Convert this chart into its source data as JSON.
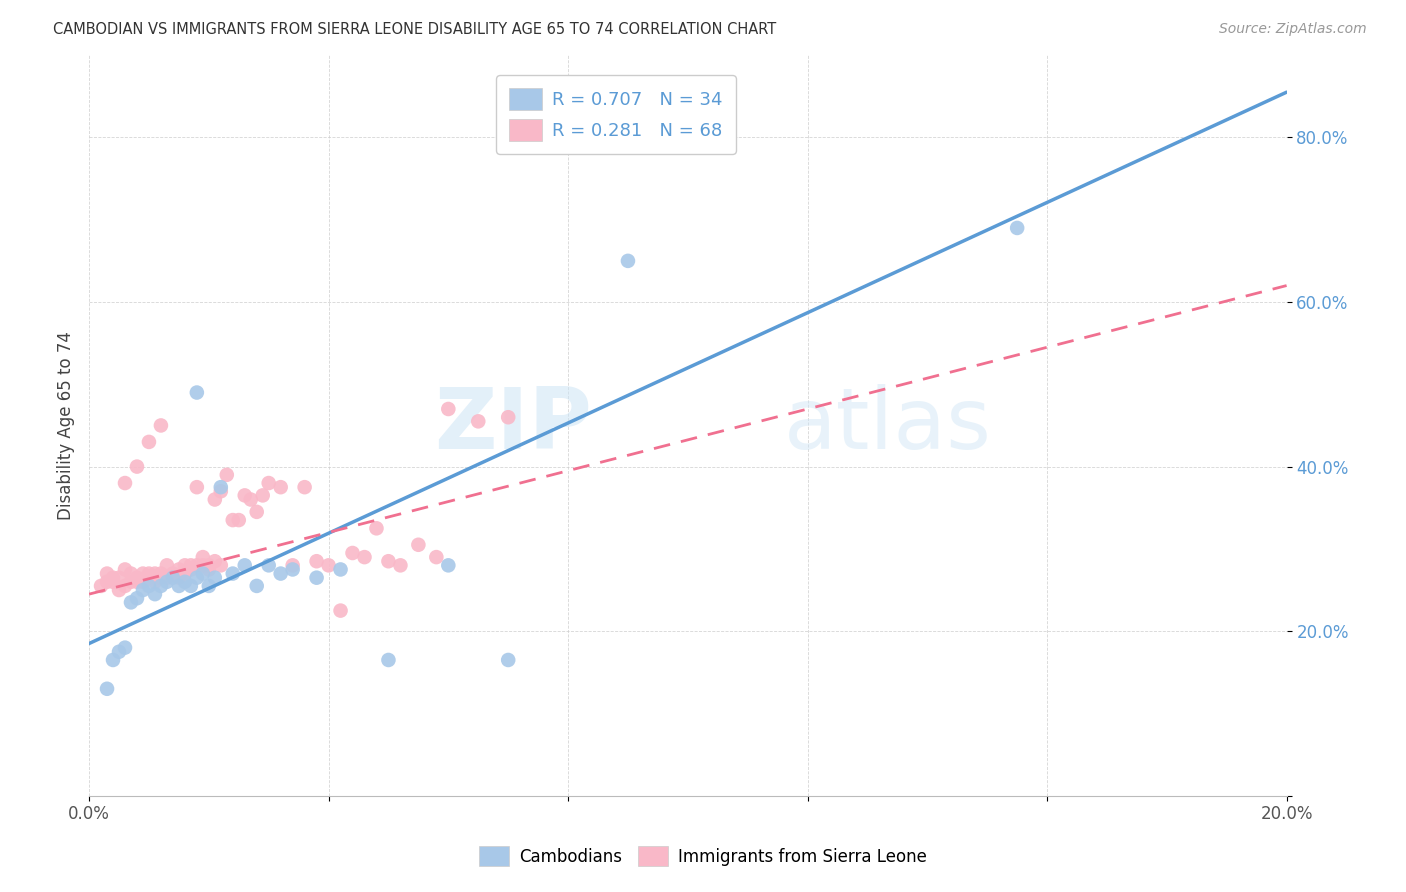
{
  "title": "CAMBODIAN VS IMMIGRANTS FROM SIERRA LEONE DISABILITY AGE 65 TO 74 CORRELATION CHART",
  "source": "Source: ZipAtlas.com",
  "ylabel": "Disability Age 65 to 74",
  "xlim": [
    0.0,
    0.2
  ],
  "ylim": [
    0.0,
    0.9
  ],
  "x_tick_positions": [
    0.0,
    0.04,
    0.08,
    0.12,
    0.16,
    0.2
  ],
  "x_tick_labels": [
    "0.0%",
    "",
    "",
    "",
    "",
    "20.0%"
  ],
  "y_tick_positions": [
    0.0,
    0.2,
    0.4,
    0.6,
    0.8
  ],
  "y_tick_labels": [
    "",
    "20.0%",
    "40.0%",
    "60.0%",
    "80.0%"
  ],
  "cambodian_color": "#a8c8e8",
  "sierra_leone_color": "#f9b8c8",
  "trend_cambodian_color": "#5b9bd5",
  "trend_sierra_leone_color": "#f07090",
  "watermark_zip": "ZIP",
  "watermark_atlas": "atlas",
  "legend1_label": "R = 0.707   N = 34",
  "legend2_label": "R = 0.281   N = 68",
  "cambodian_scatter_x": [
    0.003,
    0.004,
    0.005,
    0.006,
    0.007,
    0.008,
    0.009,
    0.01,
    0.011,
    0.012,
    0.013,
    0.014,
    0.015,
    0.016,
    0.017,
    0.018,
    0.019,
    0.02,
    0.021,
    0.022,
    0.024,
    0.026,
    0.028,
    0.03,
    0.032,
    0.034,
    0.038,
    0.042,
    0.05,
    0.06,
    0.07,
    0.09,
    0.155,
    0.018
  ],
  "cambodian_scatter_y": [
    0.13,
    0.165,
    0.175,
    0.18,
    0.235,
    0.24,
    0.25,
    0.255,
    0.245,
    0.255,
    0.26,
    0.265,
    0.255,
    0.26,
    0.255,
    0.265,
    0.27,
    0.255,
    0.265,
    0.375,
    0.27,
    0.28,
    0.255,
    0.28,
    0.27,
    0.275,
    0.265,
    0.275,
    0.165,
    0.28,
    0.165,
    0.65,
    0.69,
    0.49
  ],
  "sierra_leone_scatter_x": [
    0.002,
    0.003,
    0.003,
    0.004,
    0.004,
    0.005,
    0.005,
    0.006,
    0.006,
    0.007,
    0.007,
    0.008,
    0.008,
    0.009,
    0.009,
    0.01,
    0.01,
    0.011,
    0.011,
    0.012,
    0.012,
    0.013,
    0.013,
    0.014,
    0.015,
    0.015,
    0.016,
    0.016,
    0.017,
    0.017,
    0.018,
    0.018,
    0.019,
    0.019,
    0.02,
    0.02,
    0.021,
    0.021,
    0.022,
    0.022,
    0.023,
    0.024,
    0.025,
    0.026,
    0.027,
    0.028,
    0.029,
    0.03,
    0.032,
    0.034,
    0.036,
    0.038,
    0.04,
    0.042,
    0.044,
    0.046,
    0.048,
    0.05,
    0.052,
    0.055,
    0.058,
    0.06,
    0.065,
    0.07,
    0.006,
    0.008,
    0.01,
    0.012
  ],
  "sierra_leone_scatter_y": [
    0.255,
    0.27,
    0.26,
    0.265,
    0.26,
    0.25,
    0.265,
    0.255,
    0.275,
    0.26,
    0.27,
    0.265,
    0.26,
    0.27,
    0.26,
    0.265,
    0.27,
    0.26,
    0.27,
    0.265,
    0.27,
    0.28,
    0.265,
    0.27,
    0.265,
    0.275,
    0.27,
    0.28,
    0.275,
    0.28,
    0.28,
    0.375,
    0.28,
    0.29,
    0.275,
    0.28,
    0.285,
    0.36,
    0.28,
    0.37,
    0.39,
    0.335,
    0.335,
    0.365,
    0.36,
    0.345,
    0.365,
    0.38,
    0.375,
    0.28,
    0.375,
    0.285,
    0.28,
    0.225,
    0.295,
    0.29,
    0.325,
    0.285,
    0.28,
    0.305,
    0.29,
    0.47,
    0.455,
    0.46,
    0.38,
    0.4,
    0.43,
    0.45
  ],
  "cam_trend_x0": 0.0,
  "cam_trend_x1": 0.2,
  "cam_trend_y0": 0.185,
  "cam_trend_y1": 0.855,
  "sl_trend_x0": 0.0,
  "sl_trend_x1": 0.2,
  "sl_trend_y0": 0.245,
  "sl_trend_y1": 0.62
}
